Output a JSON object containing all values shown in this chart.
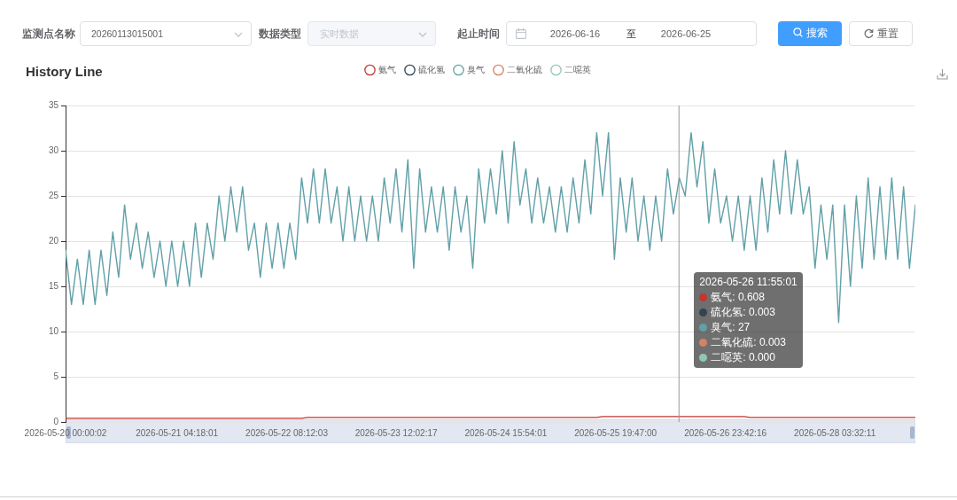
{
  "chart_data": {
    "type": "line",
    "title": "History Line",
    "legend": "top",
    "grid": "y",
    "x": [
      "2026-05-20T00:00:02",
      "2026-05-20T01:30",
      "2026-05-20T03:00",
      "2026-05-20T04:30",
      "2026-05-20T06:00",
      "2026-05-20T07:30",
      "2026-05-20T09:00",
      "2026-05-20T10:30",
      "2026-05-20T12:00",
      "2026-05-20T13:30",
      "2026-05-20T15:00",
      "2026-05-20T16:30",
      "2026-05-20T18:00",
      "2026-05-20T19:30",
      "2026-05-20T21:00",
      "2026-05-20T22:30",
      "2026-05-21T00:00",
      "2026-05-21T01:30",
      "2026-05-21T03:00",
      "2026-05-21T04:30",
      "2026-05-21T06:00",
      "2026-05-21T07:30",
      "2026-05-21T09:00",
      "2026-05-21T10:30",
      "2026-05-21T12:00",
      "2026-05-21T13:30",
      "2026-05-21T15:00",
      "2026-05-21T16:30",
      "2026-05-21T18:00",
      "2026-05-21T19:30",
      "2026-05-21T21:00",
      "2026-05-21T22:30",
      "2026-05-22T00:00",
      "2026-05-22T01:30",
      "2026-05-22T03:00",
      "2026-05-22T04:30",
      "2026-05-22T06:00",
      "2026-05-22T07:30",
      "2026-05-22T09:00",
      "2026-05-22T10:30",
      "2026-05-22T12:00",
      "2026-05-22T13:30",
      "2026-05-22T15:00",
      "2026-05-22T16:30",
      "2026-05-22T18:00",
      "2026-05-22T19:30",
      "2026-05-22T21:00",
      "2026-05-22T22:30",
      "2026-05-23T00:00",
      "2026-05-23T01:30",
      "2026-05-23T03:00",
      "2026-05-23T04:30",
      "2026-05-23T06:00",
      "2026-05-23T07:30",
      "2026-05-23T09:00",
      "2026-05-23T10:30",
      "2026-05-23T12:00",
      "2026-05-23T13:30",
      "2026-05-23T15:00",
      "2026-05-23T16:30",
      "2026-05-23T18:00",
      "2026-05-23T19:30",
      "2026-05-23T21:00",
      "2026-05-23T22:30",
      "2026-05-24T00:00",
      "2026-05-24T01:30",
      "2026-05-24T03:00",
      "2026-05-24T04:30",
      "2026-05-24T06:00",
      "2026-05-24T07:30",
      "2026-05-24T09:00",
      "2026-05-24T10:30",
      "2026-05-24T12:00",
      "2026-05-24T13:30",
      "2026-05-24T15:00",
      "2026-05-24T16:30",
      "2026-05-24T18:00",
      "2026-05-24T19:30",
      "2026-05-24T21:00",
      "2026-05-24T22:30",
      "2026-05-25T00:00",
      "2026-05-25T01:30",
      "2026-05-25T03:00",
      "2026-05-25T04:30",
      "2026-05-25T06:00",
      "2026-05-25T07:30",
      "2026-05-25T09:00",
      "2026-05-25T10:30",
      "2026-05-25T12:00",
      "2026-05-25T13:30",
      "2026-05-25T15:00",
      "2026-05-25T16:30",
      "2026-05-25T18:00",
      "2026-05-25T19:30",
      "2026-05-25T21:00",
      "2026-05-25T22:30",
      "2026-05-26T00:00",
      "2026-05-26T01:30",
      "2026-05-26T03:00",
      "2026-05-26T04:30",
      "2026-05-26T06:00",
      "2026-05-26T07:30",
      "2026-05-26T09:00",
      "2026-05-26T10:30",
      "2026-05-26T12:00",
      "2026-05-26T13:30",
      "2026-05-26T15:00",
      "2026-05-26T16:30",
      "2026-05-26T18:00",
      "2026-05-26T19:30",
      "2026-05-26T21:00",
      "2026-05-26T22:30",
      "2026-05-27T00:00",
      "2026-05-27T01:30",
      "2026-05-27T03:00",
      "2026-05-27T04:30",
      "2026-05-27T06:00",
      "2026-05-27T07:30",
      "2026-05-27T09:00",
      "2026-05-27T10:30",
      "2026-05-27T12:00",
      "2026-05-27T13:30",
      "2026-05-27T15:00",
      "2026-05-27T16:30",
      "2026-05-27T18:00",
      "2026-05-27T19:30",
      "2026-05-27T21:00",
      "2026-05-27T22:30",
      "2026-05-28T00:00",
      "2026-05-28T01:30",
      "2026-05-28T03:00",
      "2026-05-28T04:30",
      "2026-05-28T06:00",
      "2026-05-28T07:30",
      "2026-05-28T09:00",
      "2026-05-28T10:30",
      "2026-05-28T12:00",
      "2026-05-28T13:30",
      "2026-05-28T15:00",
      "2026-05-28T16:30",
      "2026-05-28T18:00",
      "2026-05-28T19:30",
      "2026-05-28T21:00",
      "2026-05-28T22:30",
      "2026-05-29T00:00"
    ],
    "series": [
      {
        "name": "氨气",
        "color": "#c23531",
        "values": [
          0.4,
          0.4,
          0.4,
          0.4,
          0.4,
          0.4,
          0.4,
          0.4,
          0.4,
          0.4,
          0.4,
          0.4,
          0.4,
          0.4,
          0.4,
          0.4,
          0.4,
          0.4,
          0.4,
          0.4,
          0.4,
          0.4,
          0.4,
          0.4,
          0.4,
          0.4,
          0.4,
          0.4,
          0.4,
          0.4,
          0.4,
          0.4,
          0.4,
          0.4,
          0.4,
          0.4,
          0.4,
          0.4,
          0.4,
          0.4,
          0.4,
          0.5,
          0.5,
          0.5,
          0.5,
          0.5,
          0.5,
          0.5,
          0.5,
          0.5,
          0.5,
          0.5,
          0.5,
          0.5,
          0.5,
          0.5,
          0.5,
          0.5,
          0.5,
          0.5,
          0.5,
          0.5,
          0.5,
          0.5,
          0.5,
          0.5,
          0.5,
          0.5,
          0.5,
          0.5,
          0.5,
          0.5,
          0.5,
          0.5,
          0.5,
          0.5,
          0.5,
          0.5,
          0.5,
          0.5,
          0.5,
          0.5,
          0.5,
          0.5,
          0.5,
          0.5,
          0.5,
          0.5,
          0.5,
          0.5,
          0.5,
          0.6,
          0.6,
          0.6,
          0.6,
          0.6,
          0.6,
          0.6,
          0.6,
          0.6,
          0.6,
          0.6,
          0.6,
          0.6,
          0.6,
          0.6,
          0.6,
          0.6,
          0.6,
          0.6,
          0.6,
          0.6,
          0.6,
          0.6,
          0.6,
          0.6,
          0.5,
          0.5,
          0.5,
          0.5,
          0.5,
          0.5,
          0.5,
          0.5,
          0.5,
          0.5,
          0.5,
          0.5,
          0.5,
          0.5,
          0.5,
          0.5,
          0.5,
          0.5,
          0.5,
          0.5,
          0.5,
          0.5,
          0.5,
          0.5,
          0.5,
          0.5,
          0.5,
          0.5,
          0.5
        ]
      },
      {
        "name": "硫化氢",
        "color": "#2f4554",
        "values": [
          null,
          null,
          null,
          null,
          null,
          null,
          null,
          null,
          null,
          null,
          null,
          null,
          null,
          null,
          null,
          null,
          null,
          null,
          null,
          null,
          null,
          null,
          null,
          null,
          null,
          null,
          null,
          null,
          null,
          null,
          null,
          null,
          null,
          null,
          null,
          null,
          null,
          null,
          null,
          null,
          null,
          null,
          null,
          null,
          null,
          null,
          null,
          null,
          null,
          null,
          null,
          null,
          null,
          null,
          null,
          null,
          null,
          null,
          null,
          null,
          null,
          null,
          null,
          null,
          null,
          null,
          null,
          null,
          null,
          null,
          null,
          null,
          null,
          null,
          null,
          null,
          null,
          null,
          null,
          null,
          null,
          null,
          null,
          null,
          null,
          null,
          null,
          null,
          null,
          null,
          null,
          null,
          null,
          null,
          null,
          null,
          null,
          null,
          null,
          null,
          null,
          null,
          null,
          null,
          null,
          null,
          null,
          null,
          null,
          null,
          null,
          null,
          null,
          null,
          null,
          null,
          null,
          null,
          null,
          null,
          null,
          null,
          null,
          null,
          null,
          null,
          null,
          null,
          null,
          null,
          null,
          null,
          null,
          null,
          null,
          null,
          null,
          null,
          null,
          null,
          null,
          null,
          null,
          null,
          null
        ]
      },
      {
        "name": "臭气",
        "color": "#61a0a8",
        "values": [
          19,
          13,
          18,
          13,
          19,
          13,
          19,
          14,
          21,
          16,
          24,
          18,
          22,
          17,
          21,
          16,
          20,
          15,
          20,
          15,
          20,
          15,
          22,
          16,
          22,
          18,
          25,
          20,
          26,
          21,
          26,
          19,
          22,
          16,
          22,
          17,
          22,
          17,
          22,
          18,
          27,
          22,
          28,
          22,
          28,
          22,
          26,
          20,
          26,
          20,
          25,
          20,
          25,
          20,
          27,
          22,
          28,
          21,
          29,
          17,
          28,
          21,
          26,
          21,
          26,
          19,
          26,
          21,
          25,
          17,
          28,
          22,
          28,
          23,
          30,
          22,
          31,
          24,
          28,
          22,
          27,
          22,
          26,
          21,
          26,
          21,
          27,
          22,
          29,
          23,
          32,
          25,
          32,
          18,
          27,
          21,
          27,
          20,
          25,
          19,
          25,
          20,
          28,
          23,
          27,
          25,
          32,
          26,
          31,
          22,
          28,
          22,
          25,
          20,
          25,
          19,
          25,
          19,
          27,
          21,
          29,
          23,
          30,
          23,
          29,
          23,
          26,
          17,
          24,
          18,
          24,
          11,
          24,
          15,
          25,
          17,
          27,
          18,
          26,
          18,
          27,
          18,
          26,
          17,
          24
        ]
      },
      {
        "name": "二氧化硫",
        "color": "#d48265",
        "values": [
          null,
          null,
          null,
          null,
          null,
          null,
          null,
          null,
          null,
          null,
          null,
          null,
          null,
          null,
          null,
          null,
          null,
          null,
          null,
          null,
          null,
          null,
          null,
          null,
          null,
          null,
          null,
          null,
          null,
          null,
          null,
          null,
          null,
          null,
          null,
          null,
          null,
          null,
          null,
          null,
          null,
          null,
          null,
          null,
          null,
          null,
          null,
          null,
          null,
          null,
          null,
          null,
          null,
          null,
          null,
          null,
          null,
          null,
          null,
          null,
          null,
          null,
          null,
          null,
          null,
          null,
          null,
          null,
          null,
          null,
          null,
          null,
          null,
          null,
          null,
          null,
          null,
          null,
          null,
          null,
          null,
          null,
          null,
          null,
          null,
          null,
          null,
          null,
          null,
          null,
          null,
          null,
          null,
          null,
          null,
          null,
          null,
          null,
          null,
          null,
          null,
          null,
          null,
          null,
          null,
          null,
          null,
          null,
          null,
          null,
          null,
          null,
          null,
          null,
          null,
          null,
          null,
          null,
          null,
          null,
          null,
          null,
          null,
          null,
          null,
          null,
          null,
          null,
          null,
          null,
          null,
          null,
          null,
          null,
          null,
          null,
          null,
          null,
          null,
          null,
          null,
          null,
          null,
          null,
          null
        ]
      },
      {
        "name": "二噁英",
        "color": "#91c7ae",
        "values": [
          null,
          null,
          null,
          null,
          null,
          null,
          null,
          null,
          null,
          null,
          null,
          null,
          null,
          null,
          null,
          null,
          null,
          null,
          null,
          null,
          null,
          null,
          null,
          null,
          null,
          null,
          null,
          null,
          null,
          null,
          null,
          null,
          null,
          null,
          null,
          null,
          null,
          null,
          null,
          null,
          null,
          null,
          null,
          null,
          null,
          null,
          null,
          null,
          null,
          null,
          null,
          null,
          null,
          null,
          null,
          null,
          null,
          null,
          null,
          null,
          null,
          null,
          null,
          null,
          null,
          null,
          null,
          null,
          null,
          null,
          null,
          null,
          null,
          null,
          null,
          null,
          null,
          null,
          null,
          null,
          null,
          null,
          null,
          null,
          null,
          null,
          null,
          null,
          null,
          null,
          null,
          null,
          null,
          null,
          null,
          null,
          null,
          null,
          null,
          null,
          null,
          null,
          null,
          null,
          null,
          null,
          null,
          null,
          null,
          null,
          null,
          null,
          null,
          null,
          null,
          null,
          null,
          null,
          null,
          null,
          null,
          null,
          null,
          null,
          null,
          null,
          null,
          null,
          null,
          null,
          null,
          null,
          null,
          null,
          null,
          null,
          null,
          null,
          null,
          null,
          null,
          null,
          null,
          null,
          null
        ]
      }
    ],
    "xlim": [
      "2026-05-20T00:00:02",
      "2026-05-29T00:00"
    ],
    "xticks": [
      {
        "value": "2026-05-20T00:00:02",
        "label": "2026-05-20 00:00:02"
      },
      {
        "value": "2026-05-21T04:18:01",
        "label": "2026-05-21 04:18:01"
      },
      {
        "value": "2026-05-22T08:12:03",
        "label": "2026-05-22 08:12:03"
      },
      {
        "value": "2026-05-23T12:02:17",
        "label": "2026-05-23 12:02:17"
      },
      {
        "value": "2026-05-24T15:54:01",
        "label": "2026-05-24 15:54:01"
      },
      {
        "value": "2026-05-25T19:47:00",
        "label": "2026-05-25 19:47:00"
      },
      {
        "value": "2026-05-26T23:42:16",
        "label": "2026-05-26 23:42:16"
      },
      {
        "value": "2026-05-28T03:32:11",
        "label": "2026-05-28 03:32:11"
      }
    ],
    "ylim": [
      0,
      35
    ],
    "yticks": [
      0,
      5,
      10,
      15,
      20,
      25,
      30,
      35
    ],
    "ref_lines": [
      {
        "axis": "x",
        "value": "2026-05-26T11:55:01",
        "color": "#999999"
      }
    ],
    "annotations": [
      "监测点名称",
      "20260113015001",
      "数据类型",
      "实时数据",
      "起止时间",
      "2026-06-16",
      "至",
      "2026-06-25",
      "搜索",
      "重置",
      {
        "text": "2026-05-26 11:55:01",
        "x": "2026-05-26T11:55:01"
      },
      "氨气: 0.608",
      "硫化氢: 0.003",
      "臭气: 27",
      "二氧化硫: 0.003",
      "二噁英: 0.000"
    ]
  }
}
